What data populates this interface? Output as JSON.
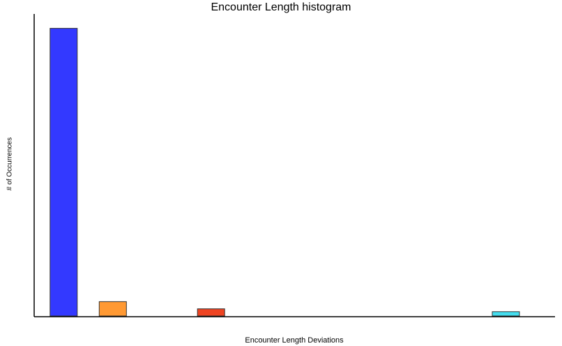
{
  "chart_data": {
    "type": "bar",
    "title": "Encounter Length histogram",
    "xlabel": "Encounter Length Deviations",
    "ylabel": "# of Occurrences",
    "grid": false,
    "legend": "none",
    "bars": [
      {
        "x": 1,
        "value": 100,
        "color": "#3339ff"
      },
      {
        "x": 2,
        "value": 5,
        "color": "#ff9933"
      },
      {
        "x": 4,
        "value": 2.5,
        "color": "#ee4422"
      },
      {
        "x": 10,
        "value": 1.5,
        "color": "#44ddee"
      }
    ],
    "ylim": [
      0,
      105
    ],
    "xlim": [
      0.4,
      11
    ]
  }
}
